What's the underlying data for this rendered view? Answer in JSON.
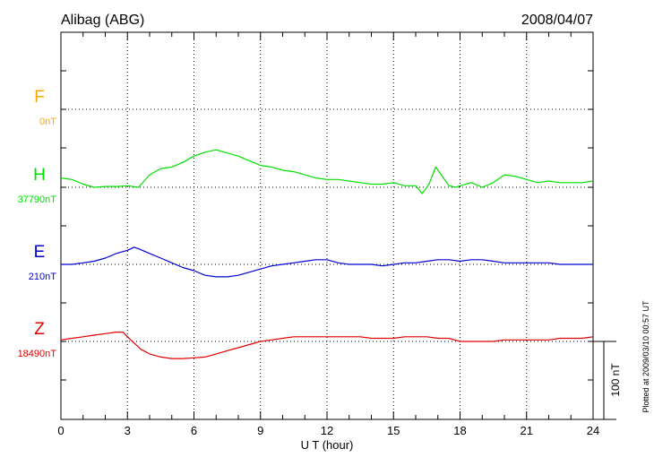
{
  "header": {
    "station": "Alibag (ABG)",
    "date": "2008/04/07"
  },
  "footer": {
    "plotted_note": "Plotted at 2009/03/10 00:57 UT"
  },
  "chart_data": {
    "type": "line",
    "title": "Alibag (ABG)",
    "date": "2008/04/07",
    "xlabel": "U T (hour)",
    "xlim": [
      0,
      24
    ],
    "xticks": [
      0,
      3,
      6,
      9,
      12,
      15,
      18,
      21,
      24
    ],
    "x_minor_step": 1,
    "grid": "dotted baselines at each component level, dotted vertical lines every 3 hours",
    "scale_bar": {
      "label": "100 nT",
      "value_nT": 100
    },
    "colors": {
      "F": "#ffa500",
      "H": "#00e000",
      "E": "#0000d0",
      "Z": "#e00000"
    },
    "series": [
      {
        "name": "F",
        "baseline_label": "0nT",
        "color": "#ffa500",
        "x": [],
        "values": []
      },
      {
        "name": "H",
        "baseline_label": "37790nT",
        "color": "#00e000",
        "x": [
          0,
          0.5,
          1,
          1.5,
          2,
          2.5,
          3,
          3.5,
          4,
          4.5,
          5,
          5.5,
          6,
          6.5,
          7,
          7.5,
          8,
          8.5,
          9,
          9.5,
          10,
          10.5,
          11,
          11.5,
          12,
          12.5,
          13,
          13.5,
          14,
          14.5,
          15,
          15.5,
          16,
          16.3,
          16.6,
          16.9,
          17.2,
          17.5,
          17.8,
          18,
          18.5,
          19,
          19.5,
          20,
          20.5,
          21,
          21.5,
          22,
          22.5,
          23,
          23.5,
          24
        ],
        "values": [
          12,
          10,
          4,
          0,
          1,
          1,
          2,
          0,
          16,
          24,
          26,
          32,
          40,
          45,
          48,
          44,
          40,
          34,
          28,
          26,
          22,
          20,
          16,
          12,
          10,
          10,
          8,
          6,
          4,
          4,
          6,
          2,
          2,
          -8,
          4,
          26,
          14,
          2,
          0,
          2,
          6,
          0,
          6,
          16,
          14,
          10,
          6,
          8,
          6,
          6,
          6,
          8
        ]
      },
      {
        "name": "E",
        "baseline_label": "210nT",
        "color": "#0000d0",
        "x": [
          0,
          0.5,
          1,
          1.5,
          2,
          2.5,
          3,
          3.3,
          3.5,
          4,
          4.5,
          5,
          5.5,
          6,
          6.5,
          7,
          7.5,
          8,
          8.5,
          9,
          9.5,
          10,
          10.5,
          11,
          11.5,
          12,
          12.5,
          13,
          13.5,
          14,
          14.5,
          15,
          15.5,
          16,
          16.5,
          17,
          17.5,
          18,
          18.5,
          19,
          19.5,
          20,
          20.5,
          21,
          21.5,
          22,
          22.5,
          23,
          23.5,
          24
        ],
        "values": [
          0,
          0,
          2,
          4,
          8,
          14,
          18,
          22,
          20,
          14,
          8,
          2,
          -4,
          -8,
          -14,
          -16,
          -16,
          -14,
          -10,
          -6,
          -2,
          0,
          2,
          4,
          6,
          6,
          2,
          0,
          0,
          0,
          -2,
          0,
          2,
          2,
          4,
          6,
          6,
          4,
          6,
          6,
          4,
          2,
          2,
          2,
          2,
          2,
          0,
          0,
          0,
          0
        ]
      },
      {
        "name": "Z",
        "baseline_label": "18490nT",
        "color": "#e00000",
        "x": [
          0,
          0.5,
          1,
          1.5,
          2,
          2.5,
          2.8,
          3,
          3.3,
          3.6,
          4,
          4.5,
          5,
          5.5,
          6,
          6.5,
          7,
          7.5,
          8,
          8.5,
          9,
          9.5,
          10,
          10.5,
          11,
          11.5,
          12,
          12.5,
          13,
          13.5,
          14,
          14.5,
          15,
          15.5,
          16,
          16.5,
          17,
          17.5,
          18,
          18.5,
          19,
          19.5,
          20,
          20.5,
          21,
          21.5,
          22,
          22.5,
          23,
          23.5,
          24
        ],
        "values": [
          2,
          4,
          6,
          8,
          10,
          12,
          12,
          6,
          -2,
          -10,
          -16,
          -20,
          -22,
          -22,
          -21,
          -20,
          -16,
          -12,
          -8,
          -4,
          0,
          2,
          4,
          6,
          6,
          6,
          6,
          6,
          6,
          6,
          4,
          4,
          4,
          6,
          6,
          6,
          4,
          4,
          0,
          0,
          0,
          0,
          2,
          2,
          2,
          2,
          2,
          4,
          4,
          4,
          6
        ]
      }
    ]
  }
}
